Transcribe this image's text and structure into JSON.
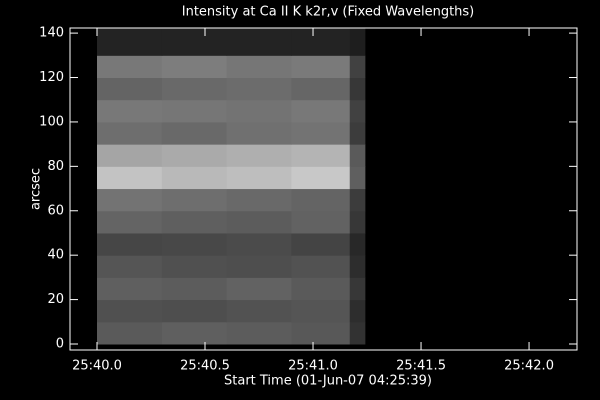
{
  "chart_data": {
    "type": "heatmap",
    "title": "Intensity at Ca II K k2r,v (Fixed Wavelengths)",
    "x_label": "Start Time (01-Jun-07 04:25:39)",
    "y_label": "arcsec",
    "xlim": [
      39.875,
      42.222
    ],
    "ylim": [
      -2.7,
      142.3
    ],
    "xticks": [
      {
        "value": 40.0,
        "label": "25:40.0"
      },
      {
        "value": 40.5,
        "label": "25:40.5"
      },
      {
        "value": 41.0,
        "label": "25:41.0"
      },
      {
        "value": 41.5,
        "label": "25:41.5"
      },
      {
        "value": 42.0,
        "label": "25:42.0"
      }
    ],
    "yticks": [
      0,
      20,
      40,
      60,
      80,
      100,
      120,
      140
    ],
    "x_edges": [
      40.0,
      40.3,
      40.6,
      40.9,
      41.17,
      41.24
    ],
    "y_edges": [
      0,
      10,
      20,
      30,
      40,
      50,
      60,
      70,
      80,
      90,
      100,
      110,
      120,
      130,
      142.3
    ],
    "z": [
      [
        90,
        95,
        92,
        88,
        50
      ],
      [
        80,
        78,
        82,
        85,
        45
      ],
      [
        95,
        92,
        98,
        90,
        55
      ],
      [
        85,
        80,
        78,
        82,
        45
      ],
      [
        70,
        72,
        75,
        68,
        40
      ],
      [
        100,
        95,
        92,
        98,
        55
      ],
      [
        115,
        110,
        105,
        100,
        60
      ],
      [
        195,
        185,
        190,
        200,
        95
      ],
      [
        165,
        170,
        175,
        180,
        90
      ],
      [
        110,
        105,
        112,
        115,
        60
      ],
      [
        120,
        118,
        115,
        120,
        65
      ],
      [
        100,
        105,
        108,
        102,
        55
      ],
      [
        120,
        125,
        118,
        122,
        65
      ],
      [
        35,
        35,
        35,
        35,
        30
      ]
    ]
  }
}
